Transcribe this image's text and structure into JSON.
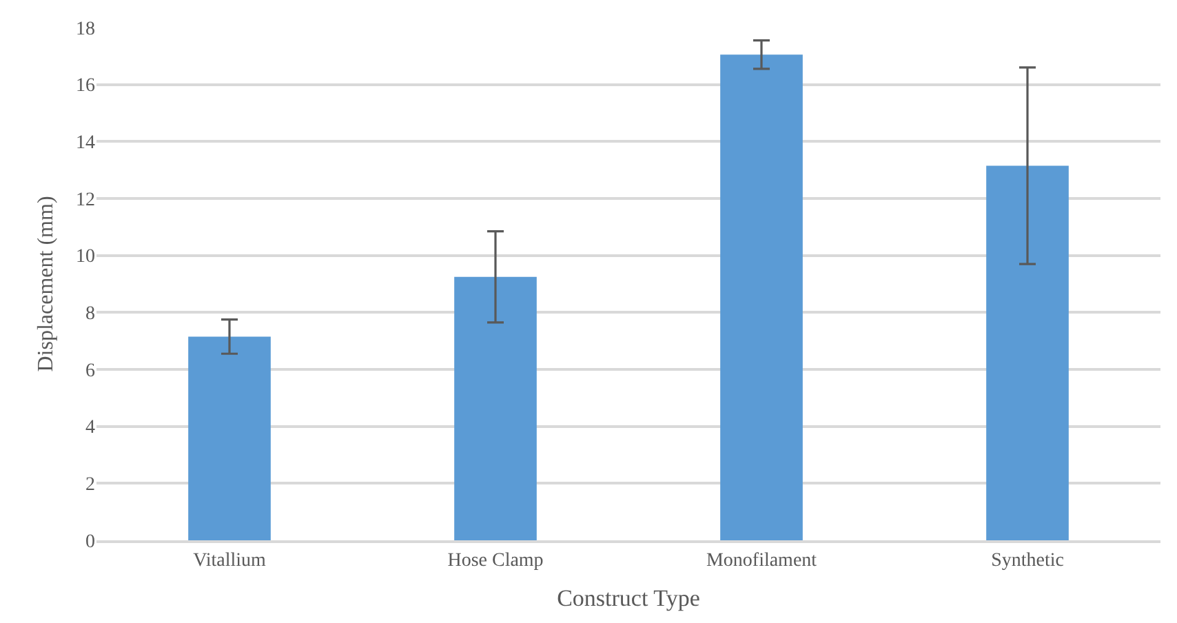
{
  "chart_data": {
    "type": "bar",
    "xlabel": "Construct Type",
    "ylabel": "Displacement (mm)",
    "categories": [
      "Vitallium",
      "Hose Clamp",
      "Monofilament",
      "Synthetic"
    ],
    "values": [
      7.15,
      9.25,
      17.05,
      13.15
    ],
    "errors": [
      0.6,
      1.6,
      0.5,
      3.45
    ],
    "color": "#5b9bd5",
    "ylim": [
      0,
      18
    ],
    "yticks": [
      0,
      2,
      4,
      6,
      8,
      10,
      12,
      14,
      16,
      18
    ],
    "grid": "y"
  }
}
